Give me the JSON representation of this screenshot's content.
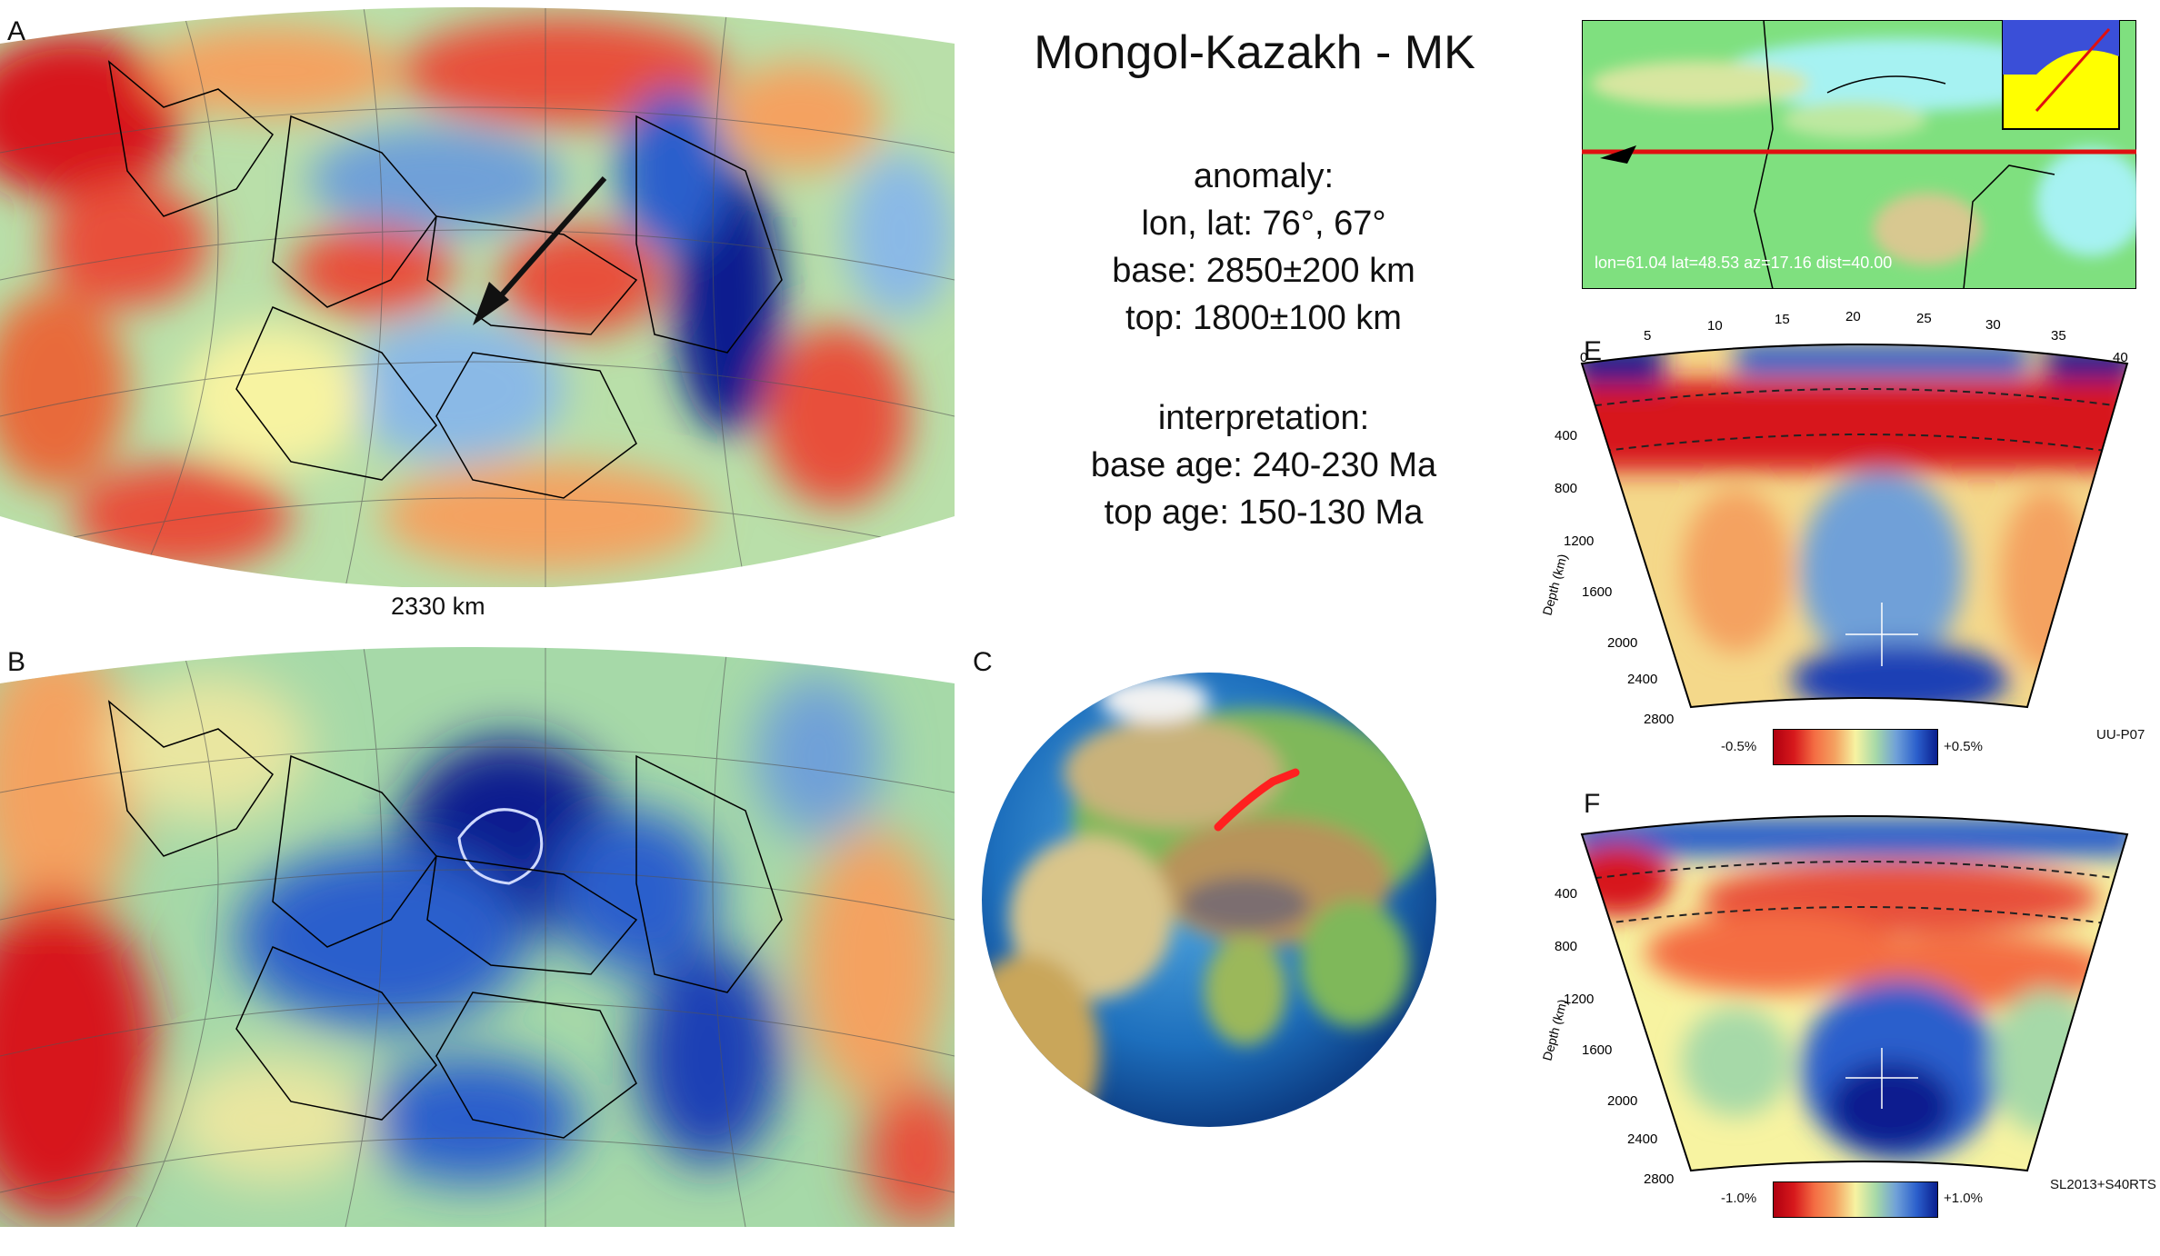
{
  "title": "Mongol-Kazakh - MK",
  "anomaly": {
    "heading": "anomaly:",
    "lonlat": "lon, lat: 76°, 67°",
    "base": "base: 2850±200 km",
    "top": "top: 1800±100 km"
  },
  "interpretation": {
    "heading": "interpretation:",
    "base_age": "base age: 240-230 Ma",
    "top_age": "top age: 150-130 Ma"
  },
  "panels": {
    "a": "A",
    "b": "B",
    "c": "C",
    "e": "E",
    "f": "F"
  },
  "map_depth_label": "2330 km",
  "profile_map": {
    "readout": "lon=61.04 lat=48.53 az=17.16 dist=40.00"
  },
  "distance_ticks": [
    "0",
    "5",
    "10",
    "15",
    "20",
    "25",
    "30",
    "35",
    "40"
  ],
  "depth_ticks": [
    "400",
    "800",
    "1200",
    "1600",
    "2000",
    "2400",
    "2800"
  ],
  "depth_axis_label": "Depth (km)",
  "scale_e": {
    "min": "-0.5%",
    "max": "+0.5%",
    "model": "UU-P07"
  },
  "scale_f": {
    "min": "-1.0%",
    "max": "+1.0%",
    "model": "SL2013+S40RTS"
  },
  "colors": {
    "red": "#d7191c",
    "orange": "#f4a261",
    "yellow": "#f7f3a1",
    "green": "#a6d9a8",
    "blue": "#2b5fcc",
    "darkblue": "#0a1f8f"
  }
}
